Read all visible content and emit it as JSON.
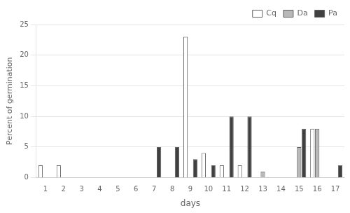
{
  "chart_data": {
    "type": "bar",
    "categories": [
      "1",
      "2",
      "3",
      "4",
      "5",
      "6",
      "7",
      "8",
      "9",
      "10",
      "11",
      "12",
      "13",
      "14",
      "15",
      "16",
      "17"
    ],
    "series": [
      {
        "name": "Cq",
        "color": "#ffffff",
        "values": [
          2,
          2,
          0,
          0,
          0,
          0,
          0,
          0,
          23,
          4,
          2,
          2,
          0,
          0,
          0,
          8,
          0
        ]
      },
      {
        "name": "Da",
        "color": "#b8b8b8",
        "values": [
          0,
          0,
          0,
          0,
          0,
          0,
          0,
          0,
          0,
          0,
          0,
          0,
          1,
          0,
          5,
          8,
          0
        ]
      },
      {
        "name": "Pa",
        "color": "#404040",
        "values": [
          0,
          0,
          0,
          0,
          0,
          0,
          5,
          5,
          3,
          2,
          10,
          10,
          0,
          0,
          8,
          0,
          2
        ]
      }
    ],
    "xlabel": "days",
    "ylabel": "Percent of germination",
    "ylim": [
      0,
      25
    ],
    "yticks": [
      0,
      5,
      10,
      15,
      20,
      25
    ],
    "grid": true,
    "legend": "upper right"
  }
}
